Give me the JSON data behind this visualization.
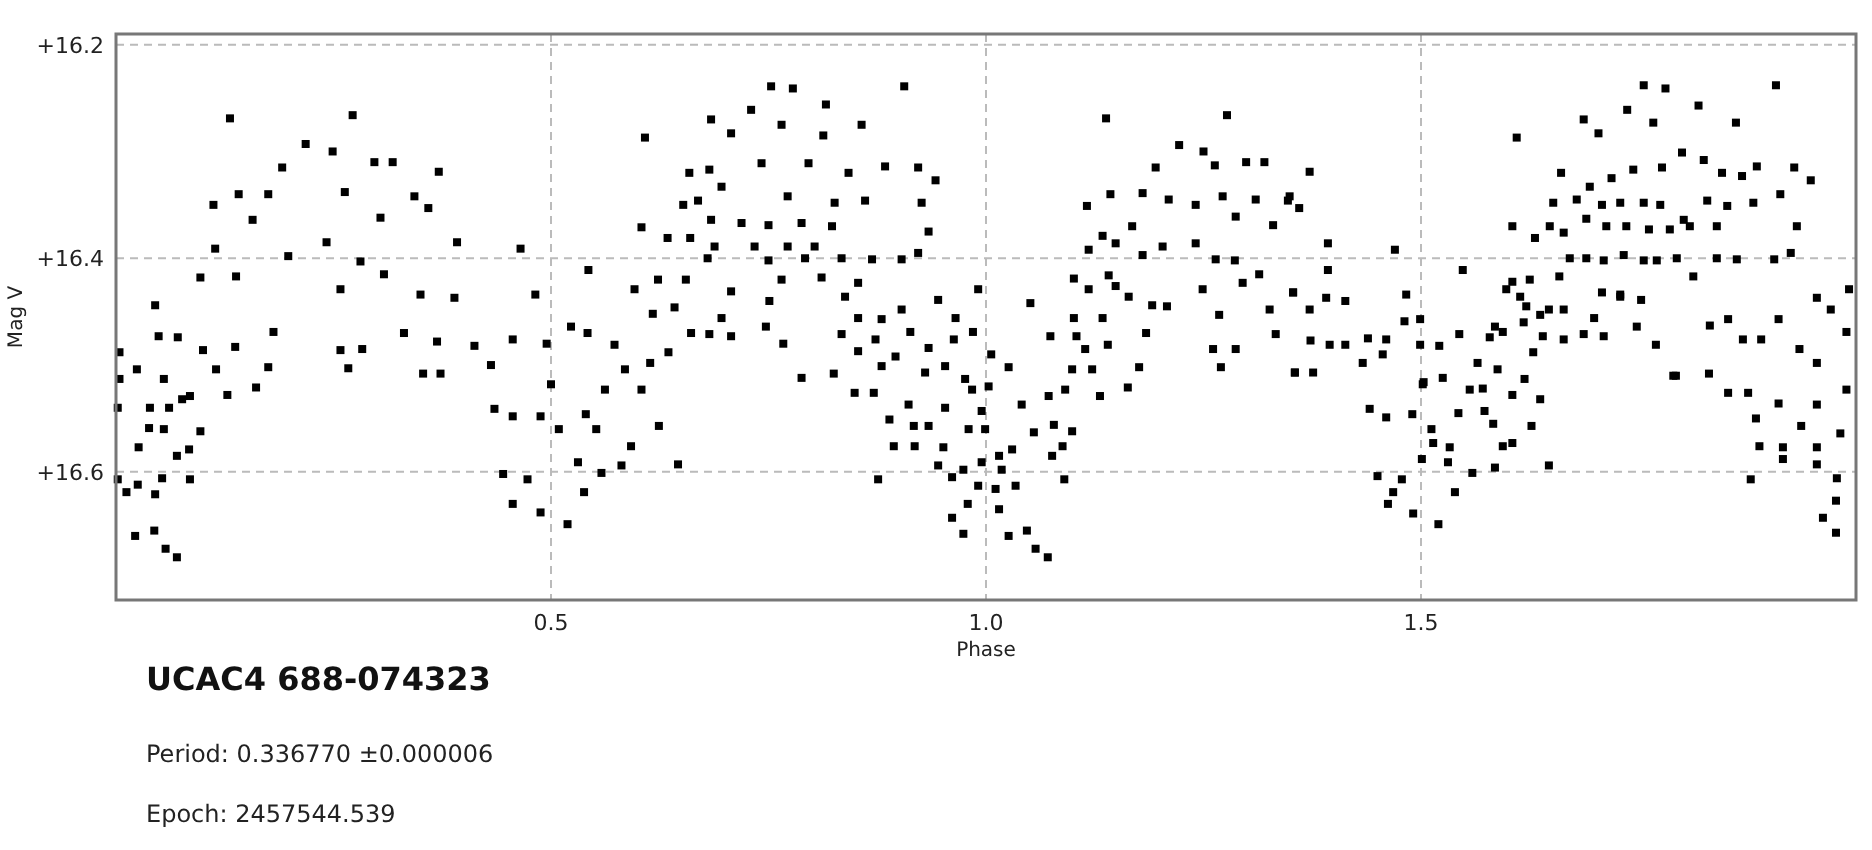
{
  "chart_data": {
    "type": "scatter",
    "title": "UCAC4 688-074323",
    "xlabel": "Phase",
    "ylabel": "Mag V",
    "annotations": [
      "Period: 0.336770 ±0.000006",
      "Epoch: 2457544.539"
    ],
    "xlim": [
      0,
      2
    ],
    "xticks": [
      0.5,
      {
        "value": 1,
        "label": "1.0"
      },
      1.5
    ],
    "ylim": [
      16.72,
      16.19
    ],
    "yticks": [
      {
        "value": 16.2,
        "label": "+16.2"
      },
      {
        "value": 16.4,
        "label": "+16.4"
      },
      {
        "value": 16.6,
        "label": "+16.6"
      }
    ],
    "grid": true,
    "marker": "square",
    "series": [
      {
        "color": "#000000",
        "x": [
          0.131,
          0.272,
          0.218,
          0.249,
          0.191,
          0.297,
          0.318,
          0.371,
          0.112,
          0.141,
          0.175,
          0.263,
          0.343,
          0.359,
          0.304,
          0.157,
          0.114,
          0.242,
          0.198,
          0.392,
          0.465,
          0.138,
          0.097,
          0.281,
          0.308,
          0.258,
          0.35,
          0.389,
          0.482,
          0.045,
          0.181,
          0.331,
          0.369,
          0.412,
          0.456,
          0.495,
          0.004,
          0.049,
          0.071,
          0.1,
          0.137,
          0.258,
          0.283,
          0.431,
          0.353,
          0.373,
          0.267,
          0.024,
          0.055,
          0.115,
          0.175,
          0.004,
          0.085,
          0.128,
          0.161,
          0.435,
          0.456,
          0.488,
          0.002,
          0.039,
          0.061,
          0.076,
          0.097,
          0.038,
          0.055,
          0.026,
          0.07,
          0.084,
          0.002,
          0.025,
          0.053,
          0.085,
          0.445,
          0.473,
          0.012,
          0.045,
          0.456,
          0.488,
          0.022,
          0.044,
          0.057,
          0.07,
          0.519,
          0.538,
          0.531,
          0.558,
          0.509,
          0.54,
          0.552,
          0.562,
          0.585,
          0.573,
          0.523,
          0.542,
          0.5,
          0.592,
          0.581,
          0.604,
          0.614,
          0.635,
          0.624,
          0.646,
          0.642,
          0.617,
          0.661,
          0.596,
          0.623,
          0.655,
          0.543,
          0.604,
          0.634,
          0.66,
          0.669,
          0.652,
          0.659,
          0.608,
          0.753,
          0.778,
          0.906,
          0.816,
          0.73,
          0.684,
          0.765,
          0.857,
          0.813,
          0.707,
          0.742,
          0.796,
          0.842,
          0.884,
          0.922,
          0.942,
          0.682,
          0.696,
          0.772,
          0.826,
          0.861,
          0.926,
          0.684,
          0.719,
          0.75,
          0.788,
          0.823,
          0.934,
          0.688,
          0.734,
          0.772,
          0.803,
          0.68,
          0.75,
          0.792,
          0.834,
          0.869,
          0.903,
          0.922,
          0.765,
          0.811,
          0.853,
          0.707,
          0.751,
          0.838,
          0.945,
          0.991,
          0.853,
          0.88,
          0.903,
          0.696,
          0.682,
          0.707,
          0.747,
          0.767,
          0.834,
          0.873,
          0.913,
          0.965,
          0.963,
          0.985,
          0.853,
          0.896,
          0.934,
          0.788,
          0.825,
          0.88,
          0.93,
          0.953,
          0.976,
          1.006,
          0.849,
          0.871,
          0.984,
          1.003,
          1.026,
          0.911,
          0.953,
          0.995,
          1.041,
          0.889,
          0.917,
          0.934,
          0.98,
          0.999,
          0.894,
          0.918,
          0.951,
          1.015,
          1.03,
          1.055,
          0.945,
          0.974,
          0.995,
          1.018,
          0.876,
          0.961,
          0.991,
          1.011,
          1.034,
          0.979,
          1.015,
          0.961,
          0.974,
          1.026,
          1.047,
          1.057,
          1.071,
          1.076,
          1.09,
          1.088,
          1.099,
          1.078,
          1.072,
          1.091,
          1.099,
          1.122,
          1.131,
          1.163,
          1.176,
          1.114,
          1.14,
          1.104,
          1.074,
          1.051,
          1.101,
          1.134,
          1.164,
          1.184,
          1.118,
          1.149,
          1.191,
          1.208,
          1.101,
          1.141,
          1.118,
          1.149,
          1.18,
          1.203,
          1.241,
          1.134,
          1.168,
          1.116,
          1.143,
          1.18,
          1.21,
          1.241,
          1.272,
          1.31,
          1.349,
          1.195,
          1.222,
          1.25,
          1.263,
          1.299,
          1.32,
          1.138,
          1.277,
          1.287,
          1.33,
          1.264,
          1.286,
          1.249,
          1.268,
          1.295,
          1.314,
          1.326,
          1.353,
          1.261,
          1.287,
          1.27,
          1.333,
          1.355,
          1.372,
          1.347,
          1.36,
          1.393,
          1.393,
          1.47,
          1.353,
          1.372,
          1.391,
          1.413,
          1.483,
          1.373,
          1.395,
          1.413,
          1.439,
          1.46,
          1.481,
          1.499,
          1.355,
          1.376,
          1.433,
          1.456,
          1.499,
          1.441,
          1.46,
          1.49,
          1.502,
          1.512,
          1.501,
          1.45,
          1.478,
          1.468,
          1.462,
          1.491,
          1.52,
          1.514,
          1.533,
          1.531,
          1.539,
          1.559,
          1.585,
          1.594,
          1.605,
          1.647,
          1.543,
          1.573,
          1.583,
          1.627,
          1.556,
          1.571,
          1.605,
          1.637,
          1.503,
          1.525,
          1.565,
          1.588,
          1.619,
          1.521,
          1.544,
          1.579,
          1.594,
          1.629,
          1.64,
          1.664,
          1.687,
          1.71,
          1.585,
          1.618,
          1.637,
          1.699,
          1.729,
          1.748,
          1.77,
          1.793,
          1.621,
          1.647,
          1.664,
          1.614,
          1.598,
          1.605,
          1.625,
          1.659,
          1.708,
          1.729,
          1.753,
          1.548,
          1.671,
          1.69,
          1.71,
          1.733,
          1.756,
          1.771,
          1.794,
          1.813,
          1.84,
          1.863,
          1.906,
          1.925,
          1.605,
          1.631,
          1.648,
          1.664,
          1.69,
          1.713,
          1.736,
          1.762,
          1.786,
          1.809,
          1.84,
          1.652,
          1.679,
          1.708,
          1.729,
          1.756,
          1.775,
          1.802,
          1.829,
          1.852,
          1.882,
          1.913,
          1.932,
          1.661,
          1.694,
          1.719,
          1.744,
          1.777,
          1.825,
          1.846,
          1.869,
          1.886,
          1.929,
          1.948,
          1.687,
          1.704,
          1.737,
          1.767,
          1.8,
          1.819,
          1.862,
          1.756,
          1.781,
          1.908,
          1.61,
          1.79,
          1.831,
          1.853,
          1.876,
          1.832,
          1.853,
          1.87,
          1.891,
          1.911,
          1.935,
          1.955,
          1.971,
          1.992,
          1.955,
          1.989,
          1.885,
          1.911,
          1.937,
          1.955,
          1.989,
          1.889,
          1.916,
          1.955,
          1.982,
          1.879,
          1.916,
          1.955,
          1.978,
          1.977,
          1.962,
          1.977
        ],
        "values": [
          16.269,
          16.266,
          16.293,
          16.3,
          16.315,
          16.31,
          16.31,
          16.319,
          16.35,
          16.34,
          16.34,
          16.338,
          16.342,
          16.353,
          16.362,
          16.364,
          16.391,
          16.385,
          16.398,
          16.385,
          16.391,
          16.417,
          16.418,
          16.403,
          16.415,
          16.429,
          16.434,
          16.437,
          16.434,
          16.444,
          16.469,
          16.47,
          16.478,
          16.482,
          16.476,
          16.48,
          16.488,
          16.473,
          16.474,
          16.486,
          16.483,
          16.486,
          16.485,
          16.5,
          16.508,
          16.508,
          16.503,
          16.504,
          16.513,
          16.504,
          16.502,
          16.513,
          16.529,
          16.528,
          16.521,
          16.541,
          16.548,
          16.548,
          16.54,
          16.54,
          16.54,
          16.532,
          16.562,
          16.559,
          16.56,
          16.577,
          16.585,
          16.579,
          16.607,
          16.612,
          16.606,
          16.607,
          16.602,
          16.607,
          16.619,
          16.621,
          16.63,
          16.638,
          16.66,
          16.655,
          16.672,
          16.68,
          16.649,
          16.619,
          16.591,
          16.601,
          16.56,
          16.546,
          16.56,
          16.523,
          16.504,
          16.481,
          16.464,
          16.47,
          16.518,
          16.576,
          16.594,
          16.523,
          16.498,
          16.488,
          16.557,
          16.593,
          16.446,
          16.452,
          16.47,
          16.429,
          16.42,
          16.42,
          16.411,
          16.371,
          16.381,
          16.381,
          16.346,
          16.35,
          16.32,
          16.287,
          16.239,
          16.241,
          16.239,
          16.256,
          16.261,
          16.27,
          16.275,
          16.275,
          16.285,
          16.283,
          16.311,
          16.311,
          16.32,
          16.314,
          16.315,
          16.327,
          16.317,
          16.333,
          16.342,
          16.348,
          16.346,
          16.348,
          16.364,
          16.367,
          16.369,
          16.367,
          16.37,
          16.375,
          16.389,
          16.389,
          16.389,
          16.389,
          16.4,
          16.402,
          16.4,
          16.4,
          16.401,
          16.401,
          16.395,
          16.42,
          16.418,
          16.423,
          16.431,
          16.44,
          16.436,
          16.439,
          16.429,
          16.456,
          16.457,
          16.448,
          16.456,
          16.471,
          16.473,
          16.464,
          16.48,
          16.471,
          16.476,
          16.469,
          16.456,
          16.476,
          16.469,
          16.487,
          16.492,
          16.484,
          16.512,
          16.508,
          16.501,
          16.507,
          16.501,
          16.513,
          16.49,
          16.526,
          16.526,
          16.523,
          16.52,
          16.502,
          16.537,
          16.54,
          16.543,
          16.537,
          16.551,
          16.557,
          16.557,
          16.56,
          16.56,
          16.576,
          16.576,
          16.577,
          16.585,
          16.579,
          16.563,
          16.594,
          16.598,
          16.591,
          16.598,
          16.607,
          16.605,
          16.613,
          16.616,
          16.613,
          16.63,
          16.635,
          16.643,
          16.658,
          16.66,
          16.655,
          16.672,
          16.68,
          16.585,
          16.607,
          16.576,
          16.562,
          16.556,
          16.529,
          16.523,
          16.504,
          16.504,
          16.529,
          16.521,
          16.502,
          16.485,
          16.481,
          16.473,
          16.473,
          16.442,
          16.456,
          16.456,
          16.436,
          16.47,
          16.429,
          16.426,
          16.444,
          16.445,
          16.419,
          16.416,
          16.392,
          16.386,
          16.397,
          16.389,
          16.386,
          16.379,
          16.37,
          16.351,
          16.34,
          16.339,
          16.345,
          16.35,
          16.342,
          16.345,
          16.342,
          16.315,
          16.294,
          16.3,
          16.313,
          16.31,
          16.31,
          16.269,
          16.266,
          16.361,
          16.369,
          16.401,
          16.402,
          16.429,
          16.453,
          16.423,
          16.415,
          16.448,
          16.432,
          16.485,
          16.485,
          16.502,
          16.471,
          16.507,
          16.319,
          16.346,
          16.353,
          16.386,
          16.411,
          16.392,
          16.432,
          16.448,
          16.437,
          16.44,
          16.434,
          16.477,
          16.481,
          16.481,
          16.475,
          16.476,
          16.459,
          16.457,
          16.507,
          16.507,
          16.498,
          16.49,
          16.481,
          16.541,
          16.549,
          16.546,
          16.518,
          16.56,
          16.588,
          16.604,
          16.607,
          16.619,
          16.63,
          16.639,
          16.649,
          16.573,
          16.577,
          16.591,
          16.619,
          16.601,
          16.596,
          16.576,
          16.573,
          16.594,
          16.545,
          16.543,
          16.555,
          16.557,
          16.523,
          16.522,
          16.528,
          16.532,
          16.516,
          16.512,
          16.498,
          16.504,
          16.513,
          16.482,
          16.471,
          16.474,
          16.469,
          16.488,
          16.473,
          16.476,
          16.471,
          16.473,
          16.464,
          16.46,
          16.453,
          16.456,
          16.436,
          16.464,
          16.481,
          16.51,
          16.445,
          16.448,
          16.448,
          16.436,
          16.429,
          16.422,
          16.42,
          16.417,
          16.432,
          16.434,
          16.439,
          16.411,
          16.4,
          16.4,
          16.402,
          16.397,
          16.402,
          16.402,
          16.4,
          16.417,
          16.4,
          16.401,
          16.401,
          16.395,
          16.37,
          16.381,
          16.37,
          16.376,
          16.363,
          16.37,
          16.37,
          16.373,
          16.373,
          16.37,
          16.37,
          16.348,
          16.345,
          16.35,
          16.348,
          16.348,
          16.35,
          16.364,
          16.346,
          16.351,
          16.348,
          16.34,
          16.37,
          16.32,
          16.333,
          16.325,
          16.317,
          16.315,
          16.308,
          16.32,
          16.323,
          16.314,
          16.315,
          16.327,
          16.27,
          16.283,
          16.261,
          16.273,
          16.301,
          16.257,
          16.273,
          16.238,
          16.241,
          16.238,
          16.287,
          16.51,
          16.508,
          16.526,
          16.526,
          16.463,
          16.457,
          16.476,
          16.476,
          16.457,
          16.485,
          16.437,
          16.448,
          16.429,
          16.498,
          16.469,
          16.55,
          16.536,
          16.557,
          16.537,
          16.523,
          16.576,
          16.577,
          16.577,
          16.564,
          16.607,
          16.588,
          16.593,
          16.606,
          16.627,
          16.643,
          16.657
        ]
      }
    ]
  }
}
